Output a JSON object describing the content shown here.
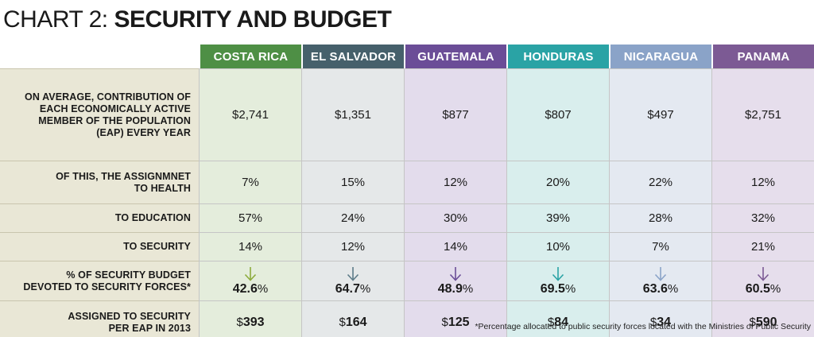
{
  "title": {
    "light": "CHART 2:",
    "bold": "SECURITY AND BUDGET"
  },
  "columns": [
    {
      "name": "COSTA RICA",
      "header_color": "#4e8f45",
      "tint": "#e4eddc",
      "arrow_color": "#8cab3c"
    },
    {
      "name": "EL SALVADOR",
      "header_color": "#46606b",
      "tint": "#e5e8e9",
      "arrow_color": "#5d7b88"
    },
    {
      "name": "GUATEMALA",
      "header_color": "#6b4d97",
      "tint": "#e3dcec",
      "arrow_color": "#6b4d97"
    },
    {
      "name": "HONDURAS",
      "header_color": "#2aa3a5",
      "tint": "#d9eeed",
      "arrow_color": "#2aa3a5"
    },
    {
      "name": "NICARAGUA",
      "header_color": "#8aa3c8",
      "tint": "#e4e9f1",
      "arrow_color": "#8aa3c8"
    },
    {
      "name": "PANAMA",
      "header_color": "#7c5a94",
      "tint": "#e6deec",
      "arrow_color": "#7c5a94"
    }
  ],
  "rows": [
    {
      "label_lines": [
        "ON AVERAGE, CONTRIBUTION OF",
        "EACH ECONOMICALLY ACTIVE",
        "MEMBER OF THE POPULATION",
        "(EAP) EVERY YEAR"
      ],
      "values": [
        "$2,741",
        "$1,351",
        "$877",
        "$807",
        "$497",
        "$2,751"
      ]
    },
    {
      "label_lines": [
        "OF THIS, THE ASSIGNMNET",
        "TO HEALTH"
      ],
      "values": [
        "7%",
        "15%",
        "12%",
        "20%",
        "22%",
        "12%"
      ]
    },
    {
      "label_lines": [
        "TO EDUCATION"
      ],
      "values": [
        "57%",
        "24%",
        "30%",
        "39%",
        "28%",
        "32%"
      ]
    },
    {
      "label_lines": [
        "TO SECURITY"
      ],
      "values": [
        "14%",
        "12%",
        "14%",
        "10%",
        "7%",
        "21%"
      ]
    },
    {
      "label_lines": [
        "% OF SECURITY BUDGET",
        "DEVOTED TO SECURITY FORCES*"
      ],
      "values": [
        "42.6",
        "64.7",
        "48.9",
        "69.5",
        "63.6",
        "60.5"
      ],
      "suffix": "%"
    },
    {
      "label_lines": [
        "ASSIGNED TO SECURITY",
        "PER EAP IN 2013"
      ],
      "values": [
        "393",
        "164",
        "125",
        "84",
        "34",
        "590"
      ],
      "prefix": "$"
    }
  ],
  "footnote": "*Percentage allocated to public security forces located with the Ministries of Public Security",
  "chart_data": {
    "type": "table",
    "title": "CHART 2: SECURITY AND BUDGET",
    "columns": [
      "COSTA RICA",
      "EL SALVADOR",
      "GUATEMALA",
      "HONDURAS",
      "NICARAGUA",
      "PANAMA"
    ],
    "rows": [
      {
        "label": "ON AVERAGE, CONTRIBUTION OF EACH ECONOMICALLY ACTIVE MEMBER OF THE POPULATION (EAP) EVERY YEAR",
        "unit": "$",
        "values": [
          2741,
          1351,
          877,
          807,
          497,
          2751
        ]
      },
      {
        "label": "OF THIS, THE ASSIGNMNET TO HEALTH",
        "unit": "%",
        "values": [
          7,
          15,
          12,
          20,
          22,
          12
        ]
      },
      {
        "label": "TO EDUCATION",
        "unit": "%",
        "values": [
          57,
          24,
          30,
          39,
          28,
          32
        ]
      },
      {
        "label": "TO SECURITY",
        "unit": "%",
        "values": [
          14,
          12,
          14,
          10,
          7,
          21
        ]
      },
      {
        "label": "% OF SECURITY BUDGET DEVOTED TO SECURITY FORCES*",
        "unit": "%",
        "values": [
          42.6,
          64.7,
          48.9,
          69.5,
          63.6,
          60.5
        ]
      },
      {
        "label": "ASSIGNED TO SECURITY PER EAP IN 2013",
        "unit": "$",
        "values": [
          393,
          164,
          125,
          84,
          34,
          590
        ]
      }
    ]
  }
}
